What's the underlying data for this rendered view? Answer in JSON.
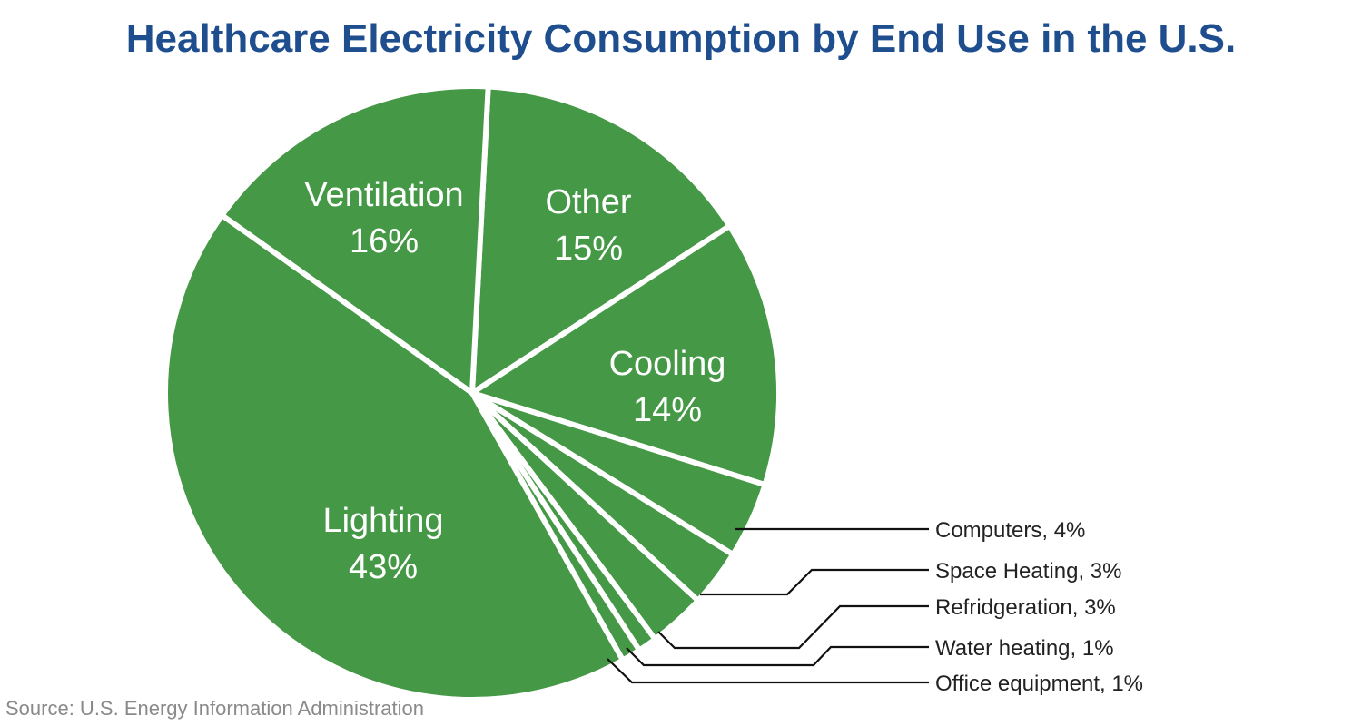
{
  "chart_data": {
    "type": "pie",
    "title": "Healthcare Electricity Consumption by End Use in the U.S.",
    "source": "Source: U.S. Energy Information Administration",
    "color": "#459845",
    "slices": [
      {
        "label": "Other",
        "value": 15,
        "display": "15%"
      },
      {
        "label": "Cooling",
        "value": 14,
        "display": "14%"
      },
      {
        "label": "Computers",
        "value": 4,
        "display": "Computers, 4%"
      },
      {
        "label": "Space Heating",
        "value": 3,
        "display": "Space Heating, 3%"
      },
      {
        "label": "Refridgeration",
        "value": 3,
        "display": "Refridgeration, 3%"
      },
      {
        "label": "Water heating",
        "value": 1,
        "display": "Water heating, 1%"
      },
      {
        "label": "Office equipment",
        "value": 1,
        "display": "Office equipment, 1%"
      },
      {
        "label": "Lighting",
        "value": 43,
        "display": "43%"
      },
      {
        "label": "Ventilation",
        "value": 16,
        "display": "16%"
      }
    ]
  }
}
